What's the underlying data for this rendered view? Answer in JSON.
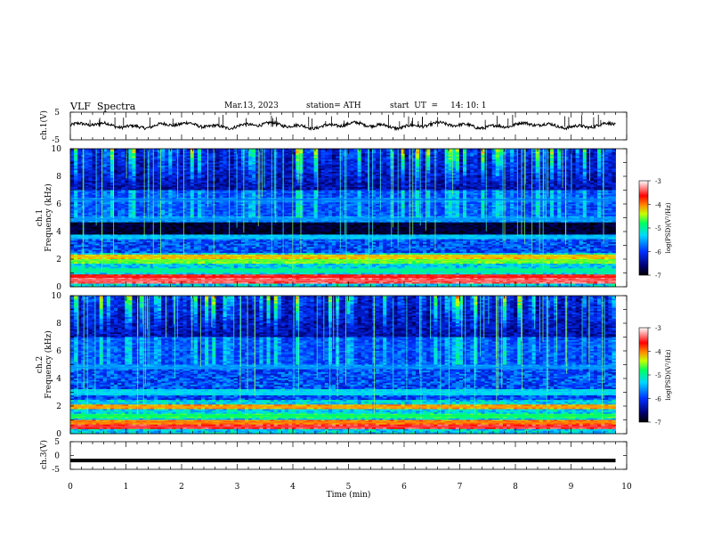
{
  "header": {
    "title": "VLF  Spectra",
    "date": "Mar.13, 2023",
    "station": "station= ATH",
    "start_label": "start  UT  =",
    "start_time": "14: 10: 1"
  },
  "chart_data": [
    {
      "id": "ch1-waveform",
      "type": "line",
      "ylabel": "ch.1(V)",
      "ylim": [
        -5,
        5
      ],
      "yticks": [
        "5",
        "-5"
      ],
      "x_range_min": [
        0,
        9.8
      ],
      "baseline_V": 0.2,
      "color": "#000000"
    },
    {
      "id": "ch1-spectrogram",
      "type": "heatmap",
      "ylabel_line1": "ch.1",
      "ylabel_line2": "Frequency  (kHz)",
      "ylim": [
        0,
        10
      ],
      "yticks": [
        "0",
        "2",
        "4",
        "6",
        "8",
        "10"
      ],
      "xlim": [
        0,
        10
      ],
      "data_extent_min": 9.8,
      "colorbar": {
        "label": "log(PSD)(V²/Hz)",
        "range": [
          -7,
          -3
        ],
        "ticks": [
          "-3",
          "-4",
          "-5",
          "-6",
          "-7"
        ]
      },
      "bands_kHz": [
        {
          "f": 0.45,
          "level": -3.4
        },
        {
          "f": 0.7,
          "level": -3.6
        },
        {
          "f": 1.2,
          "level": -5.0
        },
        {
          "f": 1.9,
          "level": -4.6
        },
        {
          "f": 2.2,
          "level": -4.2
        },
        {
          "f": 3.6,
          "level": -5.4
        },
        {
          "f": 4.9,
          "level": -5.6
        },
        {
          "f": 6.3,
          "level": -5.7
        }
      ]
    },
    {
      "id": "ch2-spectrogram",
      "type": "heatmap",
      "ylabel_line1": "ch.2",
      "ylabel_line2": "Frequency  (kHz)",
      "ylim": [
        0,
        10
      ],
      "yticks": [
        "0",
        "2",
        "4",
        "6",
        "8",
        "10"
      ],
      "xlim": [
        0,
        10
      ],
      "data_extent_min": 9.8,
      "colorbar": {
        "label": "log(PSD)(V²/Hz)",
        "range": [
          -7,
          -3
        ],
        "ticks": [
          "-3",
          "-4",
          "-5",
          "-6",
          "-7"
        ]
      },
      "bands_kHz": [
        {
          "f": 0.5,
          "level": -3.5
        },
        {
          "f": 0.8,
          "level": -4.0
        },
        {
          "f": 1.3,
          "level": -4.8
        },
        {
          "f": 1.95,
          "level": -4.1
        },
        {
          "f": 3.0,
          "level": -5.3
        },
        {
          "f": 4.8,
          "level": -5.6
        }
      ]
    },
    {
      "id": "ch3-waveform",
      "type": "line",
      "ylabel": "ch.3(V)",
      "ylim": [
        -5,
        5
      ],
      "yticks": [
        "5",
        "0",
        "-5"
      ],
      "x_range_min": [
        0,
        9.8
      ],
      "baseline_V": -1.8,
      "color": "#000000"
    }
  ],
  "x_axis": {
    "label": "Time  (min)",
    "ticks": [
      "0",
      "1",
      "2",
      "3",
      "4",
      "5",
      "6",
      "7",
      "8",
      "9",
      "10"
    ]
  }
}
